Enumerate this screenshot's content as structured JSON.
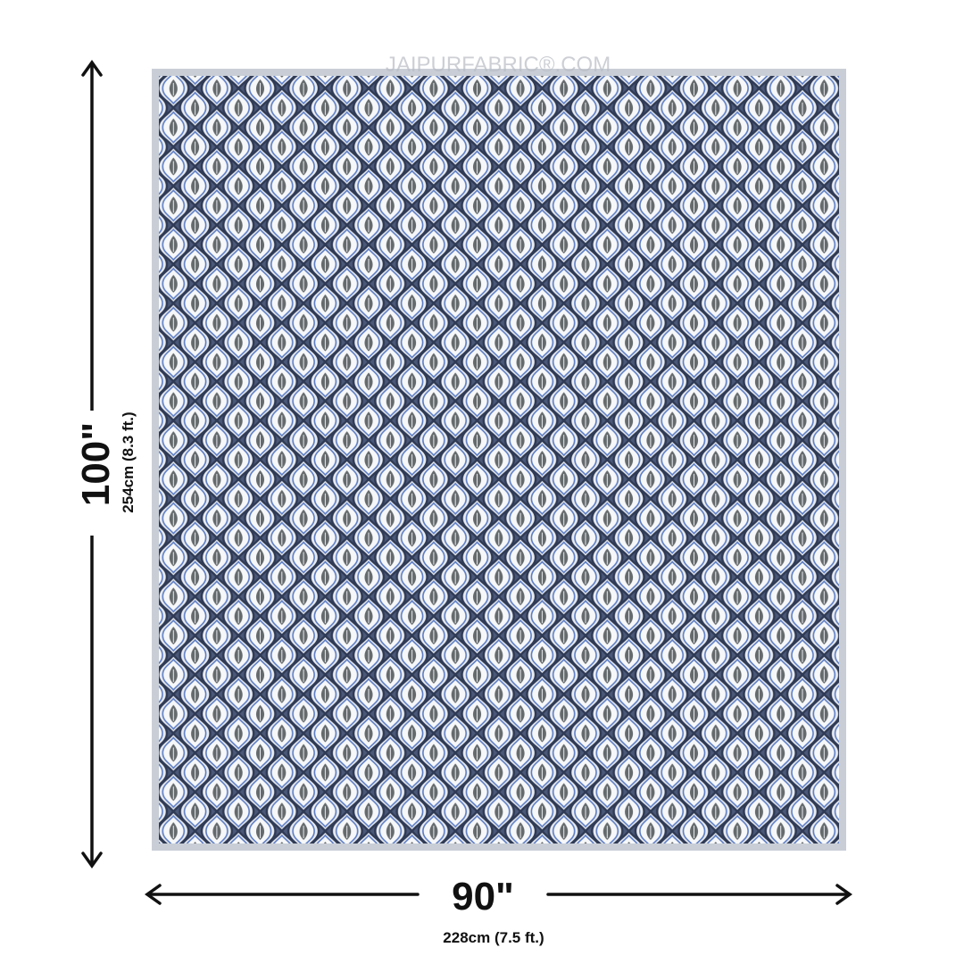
{
  "watermark": "JAIPURFABRIC®.COM",
  "height": {
    "label": "100\"",
    "metric": "254cm (8.3 ft.)"
  },
  "width": {
    "label": "90\"",
    "metric": "228cm (7.5 ft.)"
  }
}
